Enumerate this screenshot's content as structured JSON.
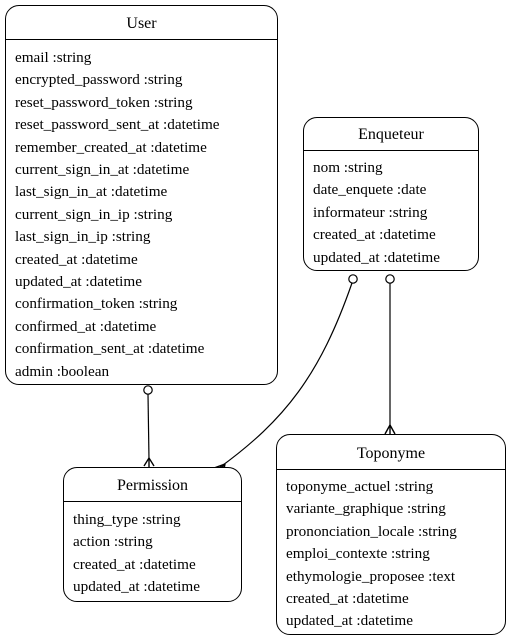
{
  "entities": {
    "user": {
      "name": "User",
      "attributes": [
        "email :string",
        "encrypted_password :string",
        "reset_password_token :string",
        "reset_password_sent_at :datetime",
        "remember_created_at :datetime",
        "current_sign_in_at :datetime",
        "last_sign_in_at :datetime",
        "current_sign_in_ip :string",
        "last_sign_in_ip :string",
        "created_at :datetime",
        "updated_at :datetime",
        "confirmation_token :string",
        "confirmed_at :datetime",
        "confirmation_sent_at :datetime",
        "admin :boolean"
      ]
    },
    "enqueteur": {
      "name": "Enqueteur",
      "attributes": [
        "nom :string",
        "date_enquete :date",
        "informateur :string",
        "created_at :datetime",
        "updated_at :datetime"
      ]
    },
    "permission": {
      "name": "Permission",
      "attributes": [
        "thing_type :string",
        "action :string",
        "created_at :datetime",
        "updated_at :datetime"
      ]
    },
    "toponyme": {
      "name": "Toponyme",
      "attributes": [
        "toponyme_actuel :string",
        "variante_graphique :string",
        "prononciation_locale :string",
        "emploi_contexte :string",
        "ethymologie_proposee :text",
        "created_at :datetime",
        "updated_at :datetime"
      ]
    }
  },
  "relationships": [
    {
      "from": "User",
      "to": "Permission",
      "from_end": "one",
      "to_end": "many"
    },
    {
      "from": "Enqueteur",
      "to": "Permission",
      "from_end": "one",
      "to_end": "many"
    },
    {
      "from": "Enqueteur",
      "to": "Toponyme",
      "from_end": "one",
      "to_end": "many"
    }
  ]
}
